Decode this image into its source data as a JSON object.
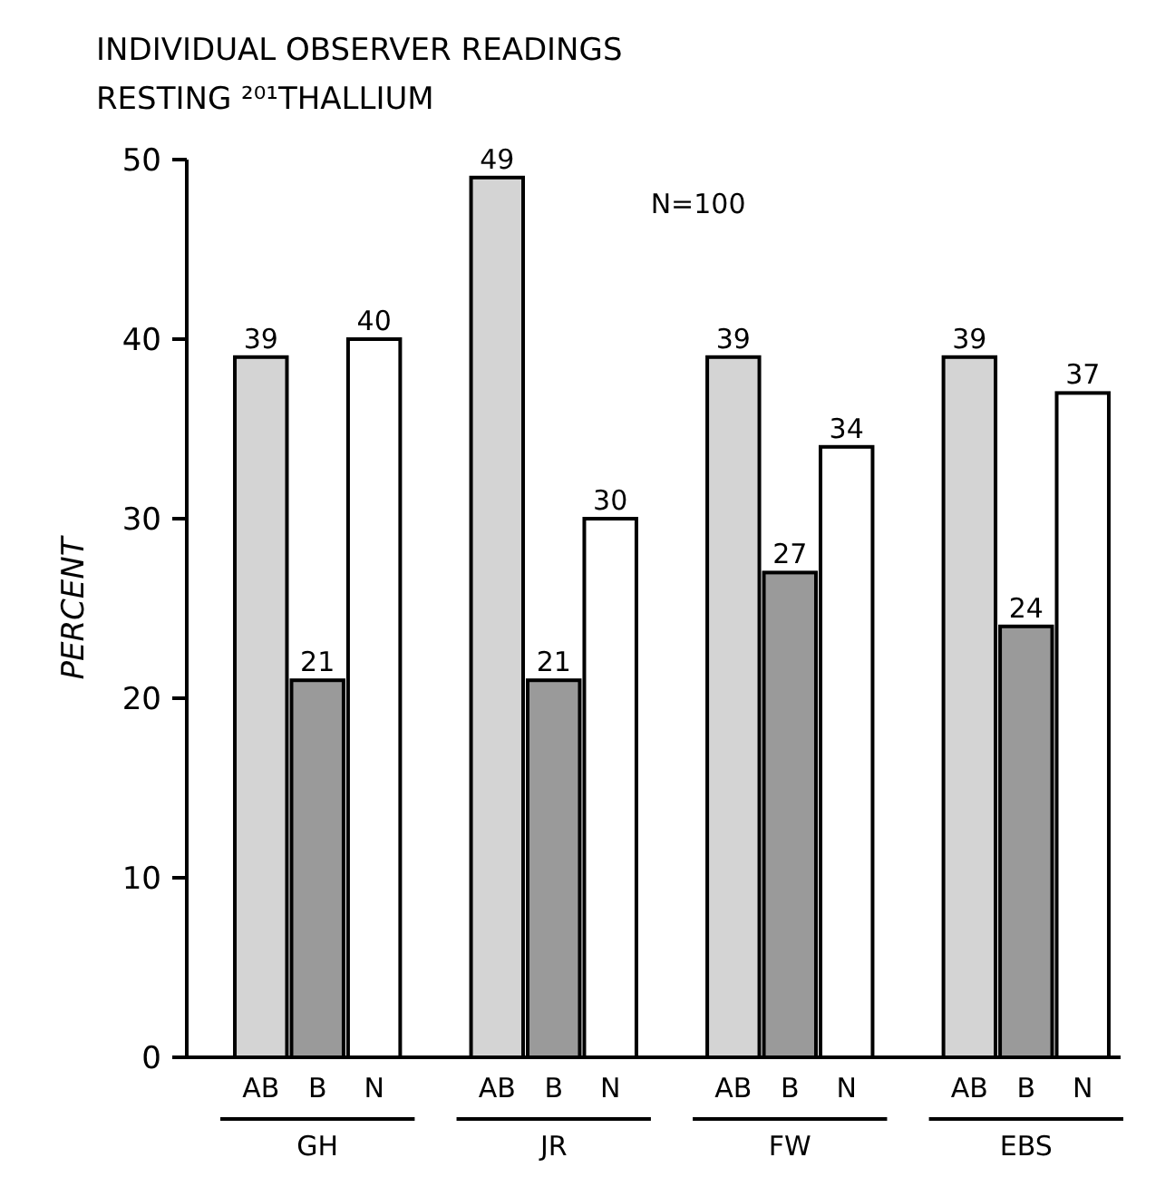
{
  "chart_data": {
    "type": "bar",
    "title": "INDIVIDUAL OBSERVER READINGS",
    "subtitle": "RESTING ²⁰¹THALLIUM",
    "ylabel": "PERCENT",
    "annotations": [
      "N=100"
    ],
    "categories": [
      "GH",
      "JR",
      "FW",
      "EBS"
    ],
    "series": [
      {
        "name": "AB",
        "color": "#d4d4d4",
        "values": [
          39,
          49,
          39,
          39
        ]
      },
      {
        "name": "B",
        "color": "#9a9a9a",
        "values": [
          21,
          21,
          27,
          24
        ]
      },
      {
        "name": "N",
        "color": "#ffffff",
        "values": [
          40,
          30,
          34,
          37
        ]
      }
    ],
    "ylim": [
      0,
      50
    ],
    "yticks": [
      0,
      10,
      20,
      30,
      40,
      50
    ],
    "grid": false,
    "data_labels": true
  }
}
